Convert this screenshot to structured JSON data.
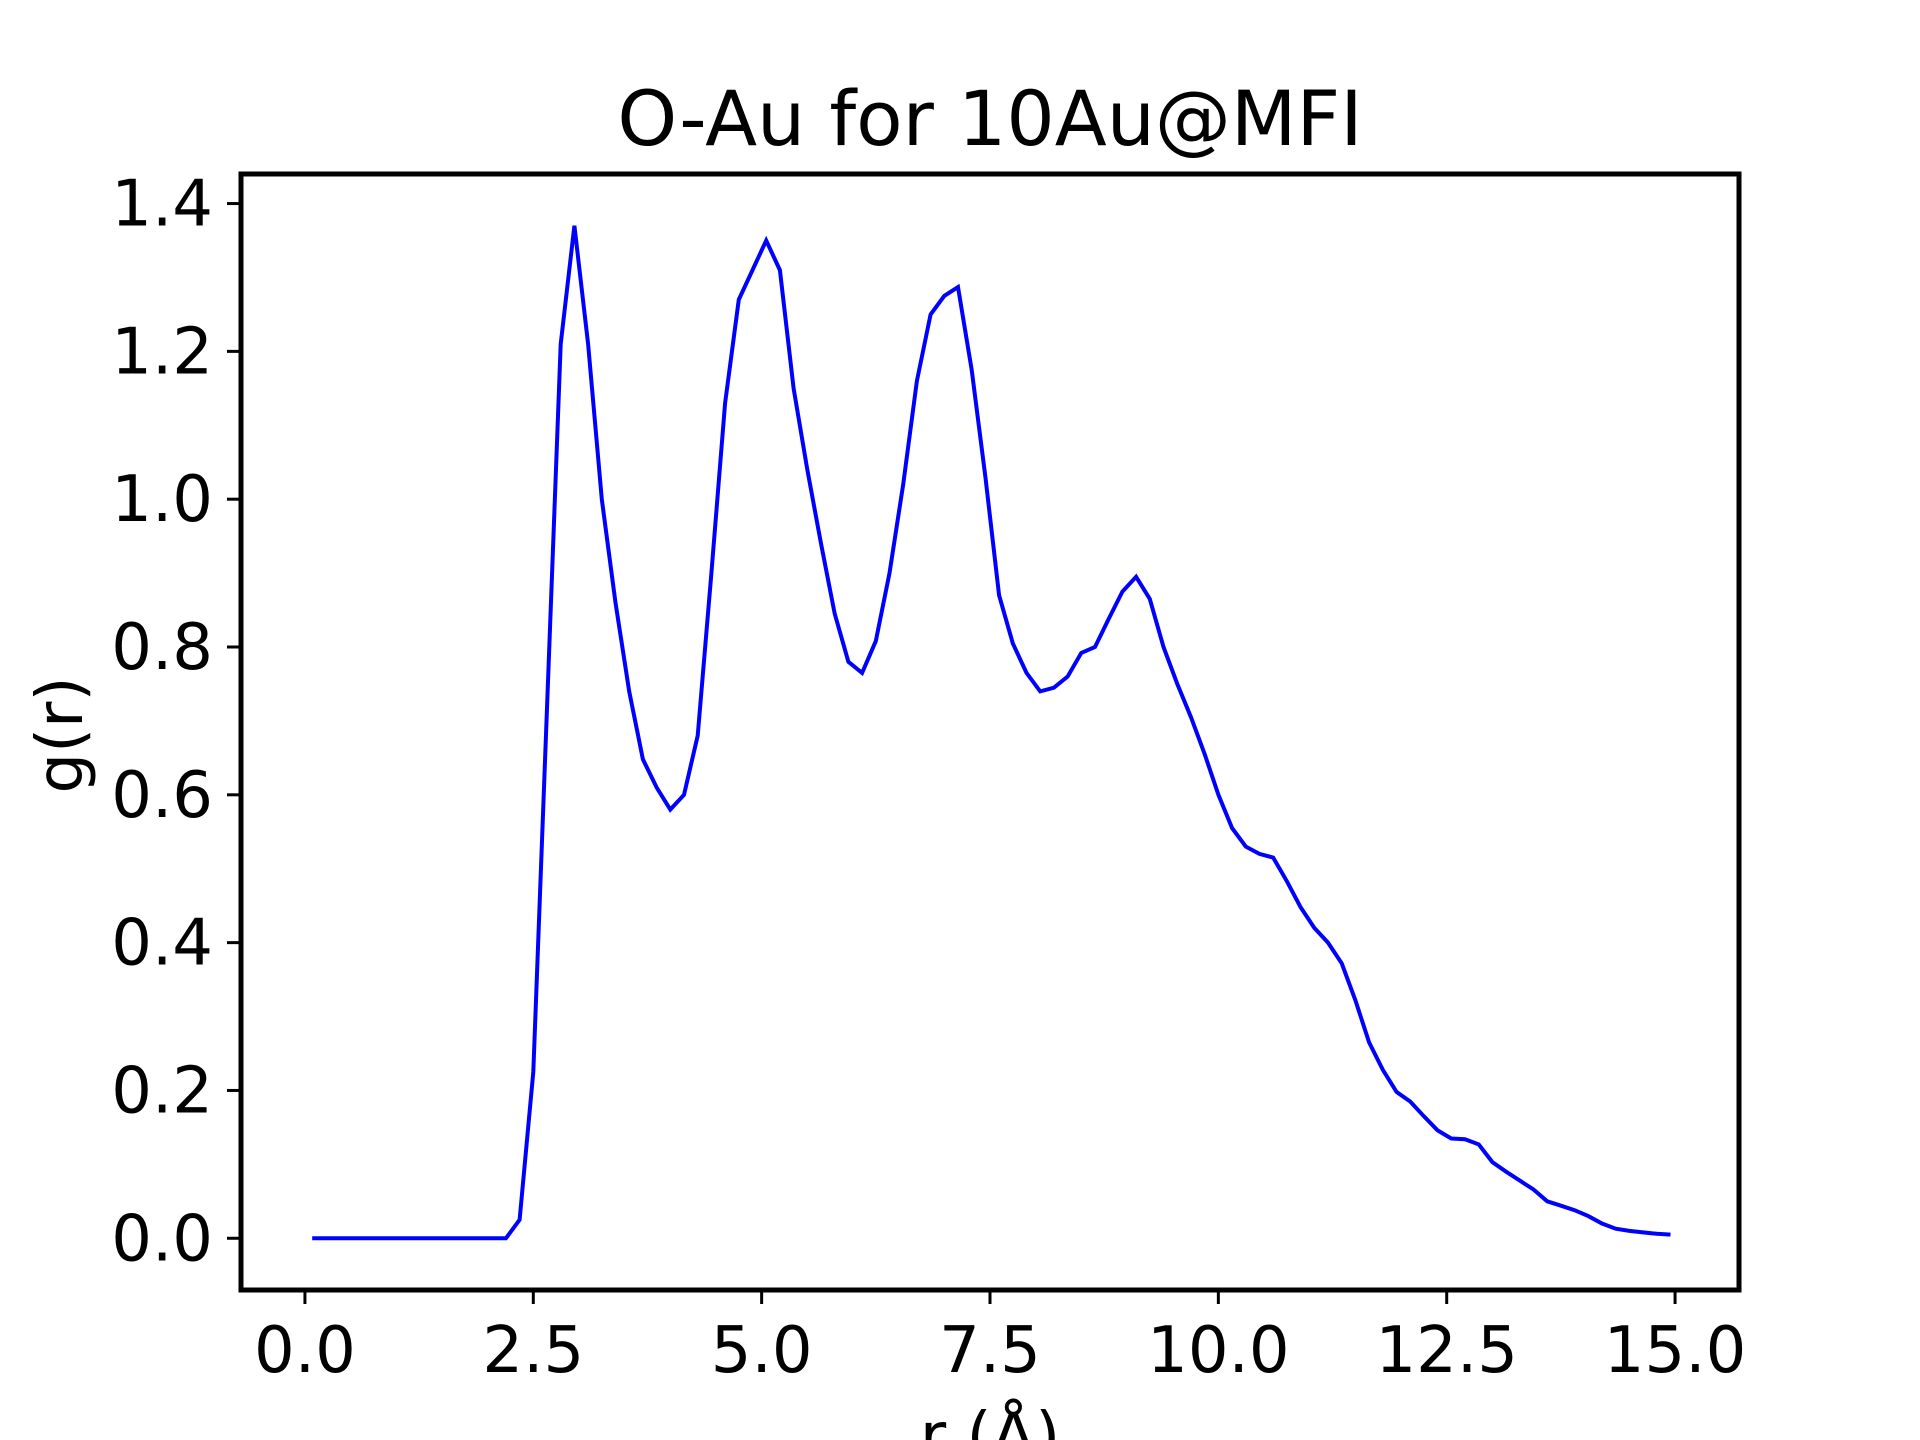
{
  "chart_data": {
    "type": "line",
    "title": "O-Au for 10Au@MFI",
    "xlabel": "r (Å)",
    "ylabel": "g(r)",
    "xlim": [
      -0.7,
      15.7
    ],
    "ylim": [
      -0.07,
      1.44
    ],
    "xticks": [
      0.0,
      2.5,
      5.0,
      7.5,
      10.0,
      12.5,
      15.0
    ],
    "xtick_labels": [
      "0.0",
      "2.5",
      "5.0",
      "7.5",
      "10.0",
      "12.5",
      "15.0"
    ],
    "yticks": [
      0.0,
      0.2,
      0.4,
      0.6,
      0.8,
      1.0,
      1.2,
      1.4
    ],
    "ytick_labels": [
      "0.0",
      "0.2",
      "0.4",
      "0.6",
      "0.8",
      "1.0",
      "1.2",
      "1.4"
    ],
    "grid": false,
    "color": "#0000ff",
    "series": [
      {
        "x": [
          0.08,
          2.2,
          2.35,
          2.5,
          2.8,
          2.95,
          3.1,
          3.25,
          3.4,
          3.55,
          3.7,
          3.85,
          4.0,
          4.15,
          4.3,
          4.45,
          4.6,
          4.75,
          4.9,
          5.05,
          5.2,
          5.35,
          5.5,
          5.65,
          5.8,
          5.95,
          6.1,
          6.25,
          6.4,
          6.55,
          6.7,
          6.85,
          7.0,
          7.15,
          7.3,
          7.45,
          7.6,
          7.75,
          7.9,
          8.05,
          8.2,
          8.35,
          8.5,
          8.65,
          8.8,
          8.95,
          9.1,
          9.25,
          9.4,
          9.55,
          9.7,
          9.85,
          10.0,
          10.15,
          10.3,
          10.45,
          10.6,
          10.75,
          10.9,
          11.05,
          11.2,
          11.35,
          11.5,
          11.65,
          11.8,
          11.95,
          12.1,
          12.25,
          12.4,
          12.55,
          12.7,
          12.85,
          13.0,
          13.15,
          13.3,
          13.45,
          13.6,
          13.75,
          13.9,
          14.05,
          14.2,
          14.35,
          14.5,
          14.65,
          14.8,
          14.95
        ],
        "y": [
          0.0,
          0.0,
          0.025,
          0.225,
          1.21,
          1.37,
          1.21,
          1.0,
          0.86,
          0.74,
          0.648,
          0.61,
          0.58,
          0.6,
          0.68,
          0.9,
          1.13,
          1.27,
          1.31,
          1.35,
          1.31,
          1.15,
          1.04,
          0.94,
          0.845,
          0.78,
          0.765,
          0.808,
          0.9,
          1.02,
          1.16,
          1.25,
          1.275,
          1.287,
          1.175,
          1.03,
          0.87,
          0.805,
          0.765,
          0.74,
          0.745,
          0.76,
          0.792,
          0.8,
          0.838,
          0.875,
          0.895,
          0.865,
          0.8,
          0.75,
          0.705,
          0.655,
          0.6,
          0.555,
          0.53,
          0.52,
          0.515,
          0.483,
          0.448,
          0.42,
          0.4,
          0.372,
          0.322,
          0.265,
          0.228,
          0.198,
          0.185,
          0.165,
          0.146,
          0.135,
          0.134,
          0.127,
          0.103,
          0.09,
          0.078,
          0.066,
          0.05,
          0.044,
          0.038,
          0.03,
          0.02,
          0.013,
          0.01,
          0.008,
          0.006,
          0.005
        ]
      }
    ]
  }
}
